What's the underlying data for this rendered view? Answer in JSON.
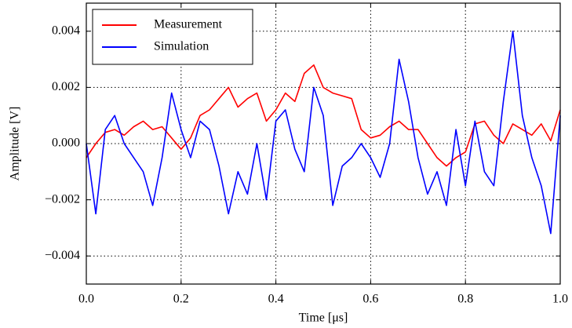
{
  "chart_data": {
    "type": "line",
    "xlabel": "Time [μs]",
    "ylabel": "Amplitude [V]",
    "x": [
      0,
      0.02,
      0.04,
      0.06,
      0.08,
      0.1,
      0.12,
      0.14,
      0.16,
      0.18,
      0.2,
      0.22,
      0.24,
      0.26,
      0.28,
      0.3,
      0.32,
      0.34,
      0.36,
      0.38,
      0.4,
      0.42,
      0.44,
      0.46,
      0.48,
      0.5,
      0.52,
      0.54,
      0.56,
      0.58,
      0.6,
      0.62,
      0.64,
      0.66,
      0.68,
      0.7,
      0.72,
      0.74,
      0.76,
      0.78,
      0.8,
      0.82,
      0.84,
      0.86,
      0.88,
      0.9,
      0.92,
      0.94,
      0.96,
      0.98,
      1
    ],
    "series": [
      {
        "name": "Measurement",
        "color": "#ff0000",
        "values": [
          -0.0005,
          0,
          0.0004,
          0.0005,
          0.0003,
          0.0006,
          0.0008,
          0.0005,
          0.0006,
          0.0002,
          -0.0002,
          0.0002,
          0.001,
          0.0012,
          0.0016,
          0.002,
          0.0013,
          0.0016,
          0.0018,
          0.0008,
          0.0012,
          0.0018,
          0.0015,
          0.0025,
          0.0028,
          0.002,
          0.0018,
          0.0017,
          0.0016,
          0.0005,
          0.0002,
          0.0003,
          0.0006,
          0.0008,
          0.0005,
          0.0005,
          0,
          -0.0005,
          -0.0008,
          -0.0005,
          -0.0003,
          0.0007,
          0.0008,
          0.0003,
          0,
          0.0007,
          0.0005,
          0.0003,
          0.0007,
          0.0001,
          0.0012
        ]
      },
      {
        "name": "Simulation",
        "color": "#0000ff",
        "values": [
          0,
          -0.0025,
          0.0005,
          0.001,
          0,
          -0.0005,
          -0.001,
          -0.0022,
          -0.0005,
          0.0018,
          0.0005,
          -0.0005,
          0.0008,
          0.0005,
          -0.0008,
          -0.0025,
          -0.001,
          -0.0018,
          0,
          -0.002,
          0.0008,
          0.0012,
          -0.0002,
          -0.001,
          0.002,
          0.001,
          -0.0022,
          -0.0008,
          -0.0005,
          0,
          -0.0005,
          -0.0012,
          0,
          0.003,
          0.0015,
          -0.0005,
          -0.0018,
          -0.001,
          -0.0022,
          0.0005,
          -0.0015,
          0.0008,
          -0.001,
          -0.0015,
          0.0015,
          0.004,
          0.001,
          -0.0005,
          -0.0015,
          -0.0032,
          0.001
        ]
      }
    ],
    "xlim": [
      0,
      1
    ],
    "xticks": [
      {
        "value": 0,
        "label": "0.0"
      },
      0.2,
      0.4,
      0.6,
      0.8,
      {
        "value": 1,
        "label": "1.0"
      }
    ],
    "ylim": [
      -0.005,
      0.005
    ],
    "yticks": [
      {
        "value": -0.004,
        "label": "−0.004"
      },
      {
        "value": -0.002,
        "label": "−0.002"
      },
      {
        "value": 0,
        "label": "0.000"
      },
      0.002,
      0.004
    ],
    "grid": true,
    "legend": "upper left"
  }
}
